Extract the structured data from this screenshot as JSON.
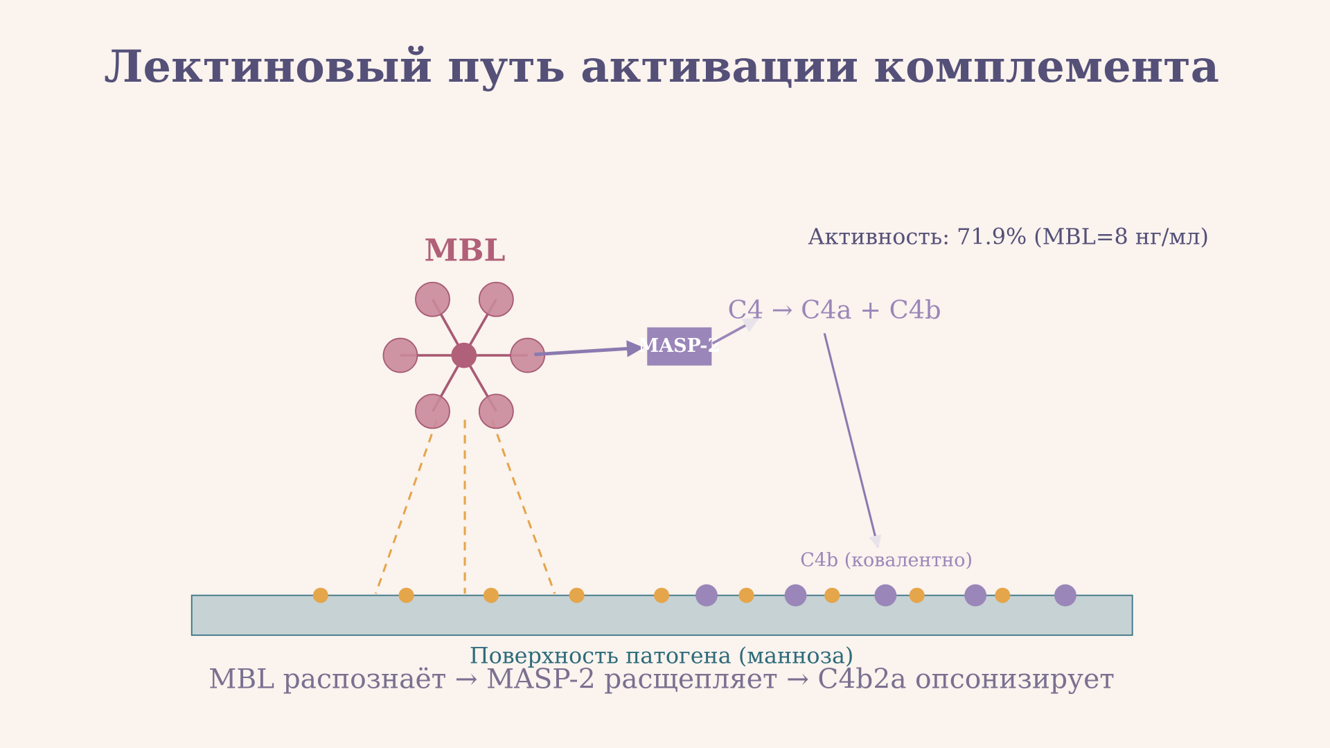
{
  "title": "Лектиновый путь активации комплемента",
  "activity": "Активность: 71.9% (MBL=8 нг/мл)",
  "mbl_label": "MBL",
  "masp_label": "MASP-2",
  "reaction": "C4 → C4a + C4b",
  "c4b_label": "C4b (ковалентно)",
  "surface_label": "Поверхность патогена (манноза)",
  "footer": "MBL распознаёт → MASP-2 расщепляет → C4b2a опсонизирует"
}
